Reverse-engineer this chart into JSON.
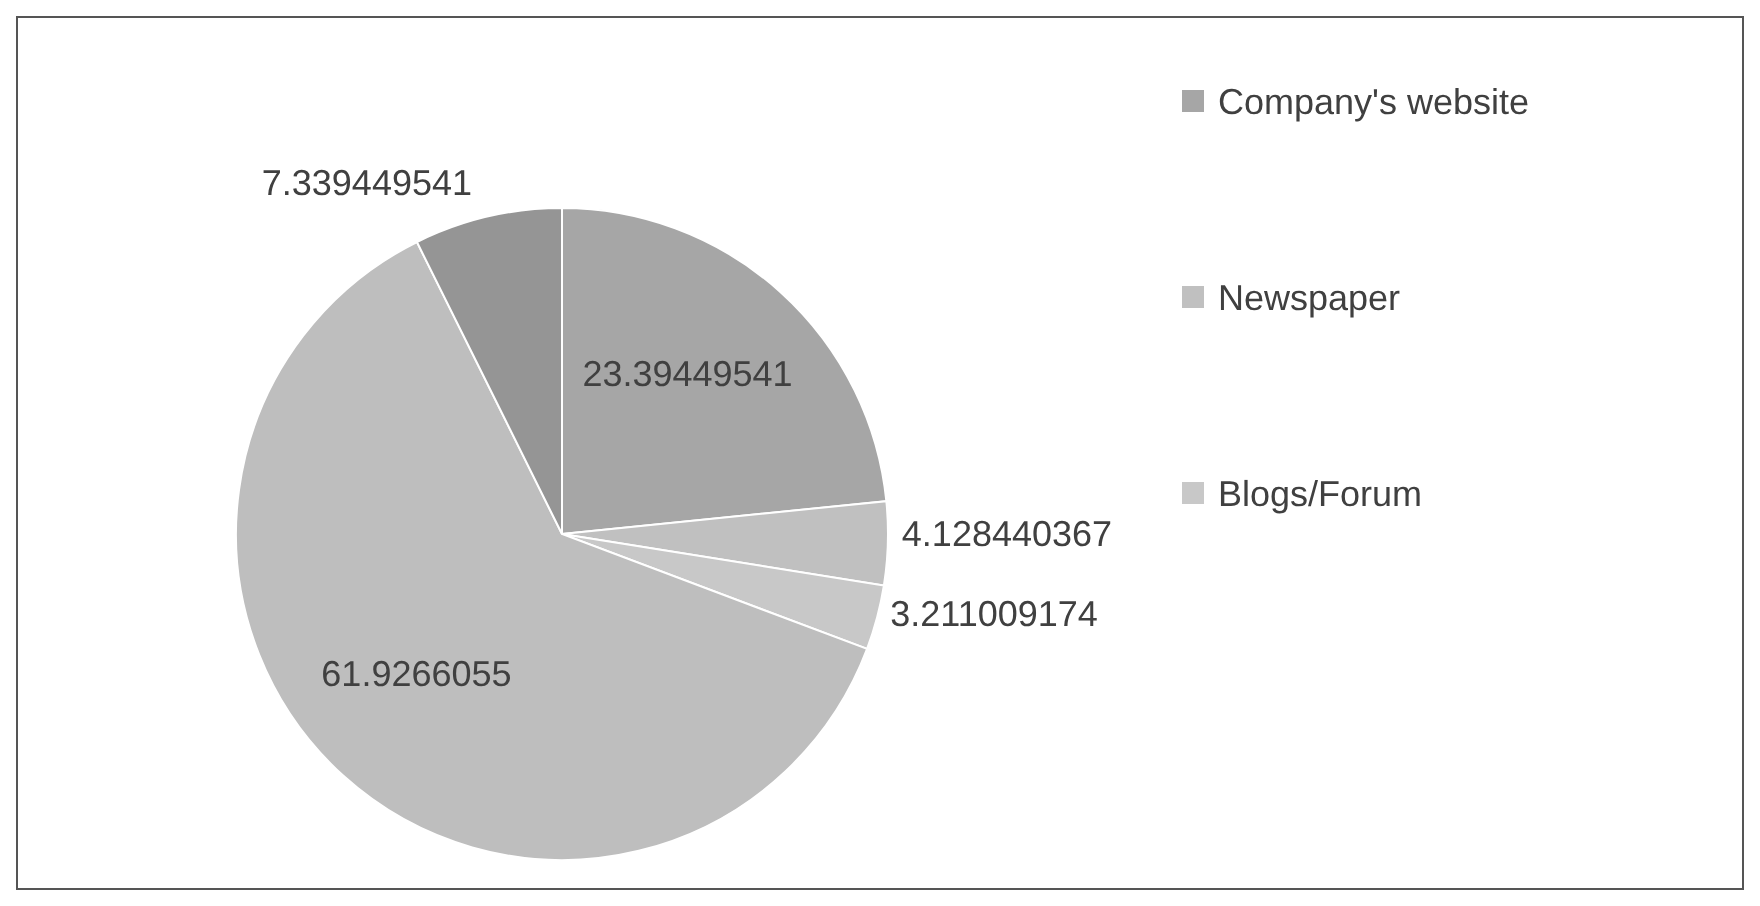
{
  "chart_data": {
    "type": "pie",
    "categories": [
      "Company's website",
      "Newspaper",
      "Blogs/Forum",
      null,
      null
    ],
    "values": [
      23.39449541,
      4.128440367,
      3.211009174,
      61.9266055,
      7.339449541
    ],
    "colors": [
      "#a6a6a6",
      "#c0c0c0",
      "#c8c8c8",
      "#bebebe",
      "#959595"
    ],
    "data_labels": true,
    "legend": "right"
  }
}
